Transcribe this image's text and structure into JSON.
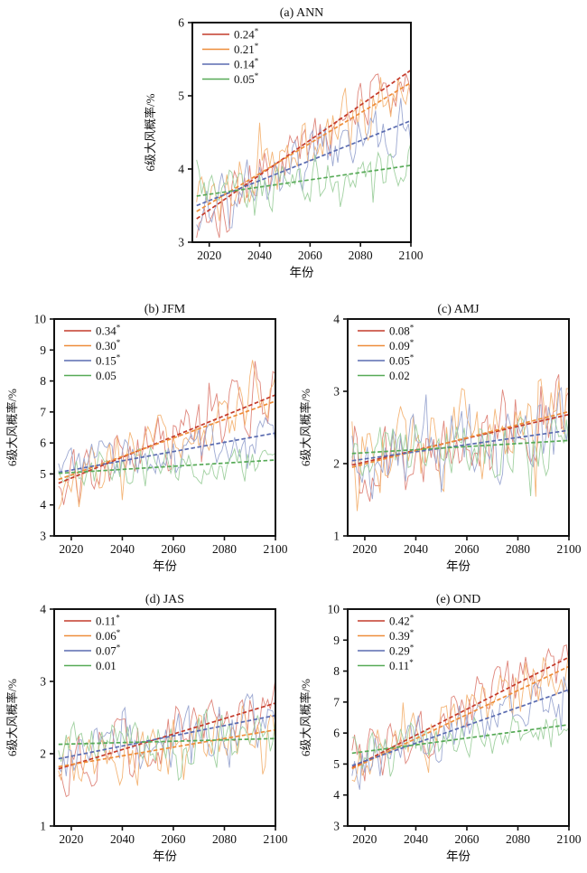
{
  "figure": {
    "name": "level-6-gale-probability-projections",
    "background": "#ffffff",
    "axis_color": "#111111"
  },
  "chart_data": [
    {
      "id": "a",
      "type": "line",
      "title": "(a) ANN",
      "xlabel": "年份",
      "ylabel": "6级大风概率/%",
      "xlim": [
        2013.3,
        2100
      ],
      "ylim": [
        3,
        6
      ],
      "xticks": [
        2020,
        2040,
        2060,
        2080,
        2100
      ],
      "yticks": [
        3,
        4,
        5,
        6
      ],
      "x_years": [
        2015,
        2100
      ],
      "legend_position": "top-left",
      "grid": false,
      "series": [
        {
          "name": "0.24",
          "significant": true,
          "color": "#c43b2b",
          "color_light": "#dd8176",
          "trend_start_2015": 3.32,
          "trend_end_2100": 5.35,
          "noise_amplitude": 0.45,
          "seed": 101
        },
        {
          "name": "0.21",
          "significant": true,
          "color": "#ee8d3a",
          "color_light": "#f3b272",
          "trend_start_2015": 3.42,
          "trend_end_2100": 5.18,
          "noise_amplitude": 0.42,
          "seed": 102
        },
        {
          "name": "0.14",
          "significant": true,
          "color": "#5a6bb0",
          "color_light": "#98a4d0",
          "trend_start_2015": 3.5,
          "trend_end_2100": 4.66,
          "noise_amplitude": 0.4,
          "seed": 103
        },
        {
          "name": "0.05",
          "significant": true,
          "color": "#57aa57",
          "color_light": "#9ccf9c",
          "trend_start_2015": 3.63,
          "trend_end_2100": 4.05,
          "noise_amplitude": 0.33,
          "seed": 104
        }
      ]
    },
    {
      "id": "b",
      "type": "line",
      "title": "(b) JFM",
      "xlabel": "年份",
      "ylabel": "6级大风概率/%",
      "xlim": [
        2013.3,
        2100
      ],
      "ylim": [
        3,
        10
      ],
      "xticks": [
        2020,
        2040,
        2060,
        2080,
        2100
      ],
      "yticks": [
        3,
        4,
        5,
        6,
        7,
        8,
        9,
        10
      ],
      "x_years": [
        2015,
        2100
      ],
      "legend_position": "top-left",
      "grid": false,
      "series": [
        {
          "name": "0.34",
          "significant": true,
          "color": "#c43b2b",
          "color_light": "#dd8176",
          "trend_start_2015": 4.7,
          "trend_end_2100": 7.55,
          "noise_amplitude": 0.95,
          "seed": 201
        },
        {
          "name": "0.30",
          "significant": true,
          "color": "#ee8d3a",
          "color_light": "#f3b272",
          "trend_start_2015": 4.82,
          "trend_end_2100": 7.35,
          "noise_amplitude": 0.85,
          "seed": 202
        },
        {
          "name": "0.15",
          "significant": true,
          "color": "#5a6bb0",
          "color_light": "#98a4d0",
          "trend_start_2015": 5.05,
          "trend_end_2100": 6.32,
          "noise_amplitude": 0.65,
          "seed": 203
        },
        {
          "name": "0.05",
          "significant": false,
          "color": "#57aa57",
          "color_light": "#9ccf9c",
          "trend_start_2015": 5.02,
          "trend_end_2100": 5.45,
          "noise_amplitude": 0.62,
          "seed": 204
        }
      ]
    },
    {
      "id": "c",
      "type": "line",
      "title": "(c) AMJ",
      "xlabel": "年份",
      "ylabel": "6级大风概率/%",
      "xlim": [
        2013.3,
        2100
      ],
      "ylim": [
        1,
        4
      ],
      "xticks": [
        2020,
        2040,
        2060,
        2080,
        2100
      ],
      "yticks": [
        1,
        2,
        3,
        4
      ],
      "x_years": [
        2015,
        2100
      ],
      "legend_position": "top-left",
      "grid": false,
      "series": [
        {
          "name": "0.08",
          "significant": true,
          "color": "#c43b2b",
          "color_light": "#dd8176",
          "trend_start_2015": 1.98,
          "trend_end_2100": 2.68,
          "noise_amplitude": 0.6,
          "seed": 301
        },
        {
          "name": "0.09",
          "significant": true,
          "color": "#ee8d3a",
          "color_light": "#f3b272",
          "trend_start_2015": 1.95,
          "trend_end_2100": 2.72,
          "noise_amplitude": 0.62,
          "seed": 302
        },
        {
          "name": "0.05",
          "significant": true,
          "color": "#5a6bb0",
          "color_light": "#98a4d0",
          "trend_start_2015": 2.04,
          "trend_end_2100": 2.46,
          "noise_amplitude": 0.5,
          "seed": 303
        },
        {
          "name": "0.02",
          "significant": false,
          "color": "#57aa57",
          "color_light": "#9ccf9c",
          "trend_start_2015": 2.14,
          "trend_end_2100": 2.32,
          "noise_amplitude": 0.45,
          "seed": 304
        }
      ]
    },
    {
      "id": "d",
      "type": "line",
      "title": "(d) JAS",
      "xlabel": "年份",
      "ylabel": "6级大风概率/%",
      "xlim": [
        2013.3,
        2100
      ],
      "ylim": [
        1,
        4
      ],
      "xticks": [
        2020,
        2040,
        2060,
        2080,
        2100
      ],
      "yticks": [
        1,
        2,
        3,
        4
      ],
      "x_years": [
        2015,
        2100
      ],
      "legend_position": "top-left",
      "grid": false,
      "series": [
        {
          "name": "0.11",
          "significant": true,
          "color": "#c43b2b",
          "color_light": "#dd8176",
          "trend_start_2015": 1.79,
          "trend_end_2100": 2.7,
          "noise_amplitude": 0.42,
          "seed": 401
        },
        {
          "name": "0.06",
          "significant": true,
          "color": "#ee8d3a",
          "color_light": "#f3b272",
          "trend_start_2015": 1.82,
          "trend_end_2100": 2.33,
          "noise_amplitude": 0.4,
          "seed": 402
        },
        {
          "name": "0.07",
          "significant": true,
          "color": "#5a6bb0",
          "color_light": "#98a4d0",
          "trend_start_2015": 1.93,
          "trend_end_2100": 2.53,
          "noise_amplitude": 0.38,
          "seed": 403
        },
        {
          "name": "0.01",
          "significant": false,
          "color": "#57aa57",
          "color_light": "#9ccf9c",
          "trend_start_2015": 2.13,
          "trend_end_2100": 2.21,
          "noise_amplitude": 0.36,
          "seed": 404
        }
      ]
    },
    {
      "id": "e",
      "type": "line",
      "title": "(e) OND",
      "xlabel": "年份",
      "ylabel": "6级大风概率/%",
      "xlim": [
        2013.3,
        2100
      ],
      "ylim": [
        3,
        10
      ],
      "xticks": [
        2020,
        2040,
        2060,
        2080,
        2100
      ],
      "yticks": [
        3,
        4,
        5,
        6,
        7,
        8,
        9,
        10
      ],
      "x_years": [
        2015,
        2100
      ],
      "legend_position": "top-left",
      "grid": false,
      "series": [
        {
          "name": "0.42",
          "significant": true,
          "color": "#c43b2b",
          "color_light": "#dd8176",
          "trend_start_2015": 4.88,
          "trend_end_2100": 8.45,
          "noise_amplitude": 0.95,
          "seed": 501
        },
        {
          "name": "0.39",
          "significant": true,
          "color": "#ee8d3a",
          "color_light": "#f3b272",
          "trend_start_2015": 4.85,
          "trend_end_2100": 8.15,
          "noise_amplitude": 0.88,
          "seed": 502
        },
        {
          "name": "0.29",
          "significant": true,
          "color": "#5a6bb0",
          "color_light": "#98a4d0",
          "trend_start_2015": 4.95,
          "trend_end_2100": 7.4,
          "noise_amplitude": 0.8,
          "seed": 503
        },
        {
          "name": "0.11",
          "significant": true,
          "color": "#57aa57",
          "color_light": "#9ccf9c",
          "trend_start_2015": 5.35,
          "trend_end_2100": 6.27,
          "noise_amplitude": 0.68,
          "seed": 504
        }
      ]
    }
  ]
}
